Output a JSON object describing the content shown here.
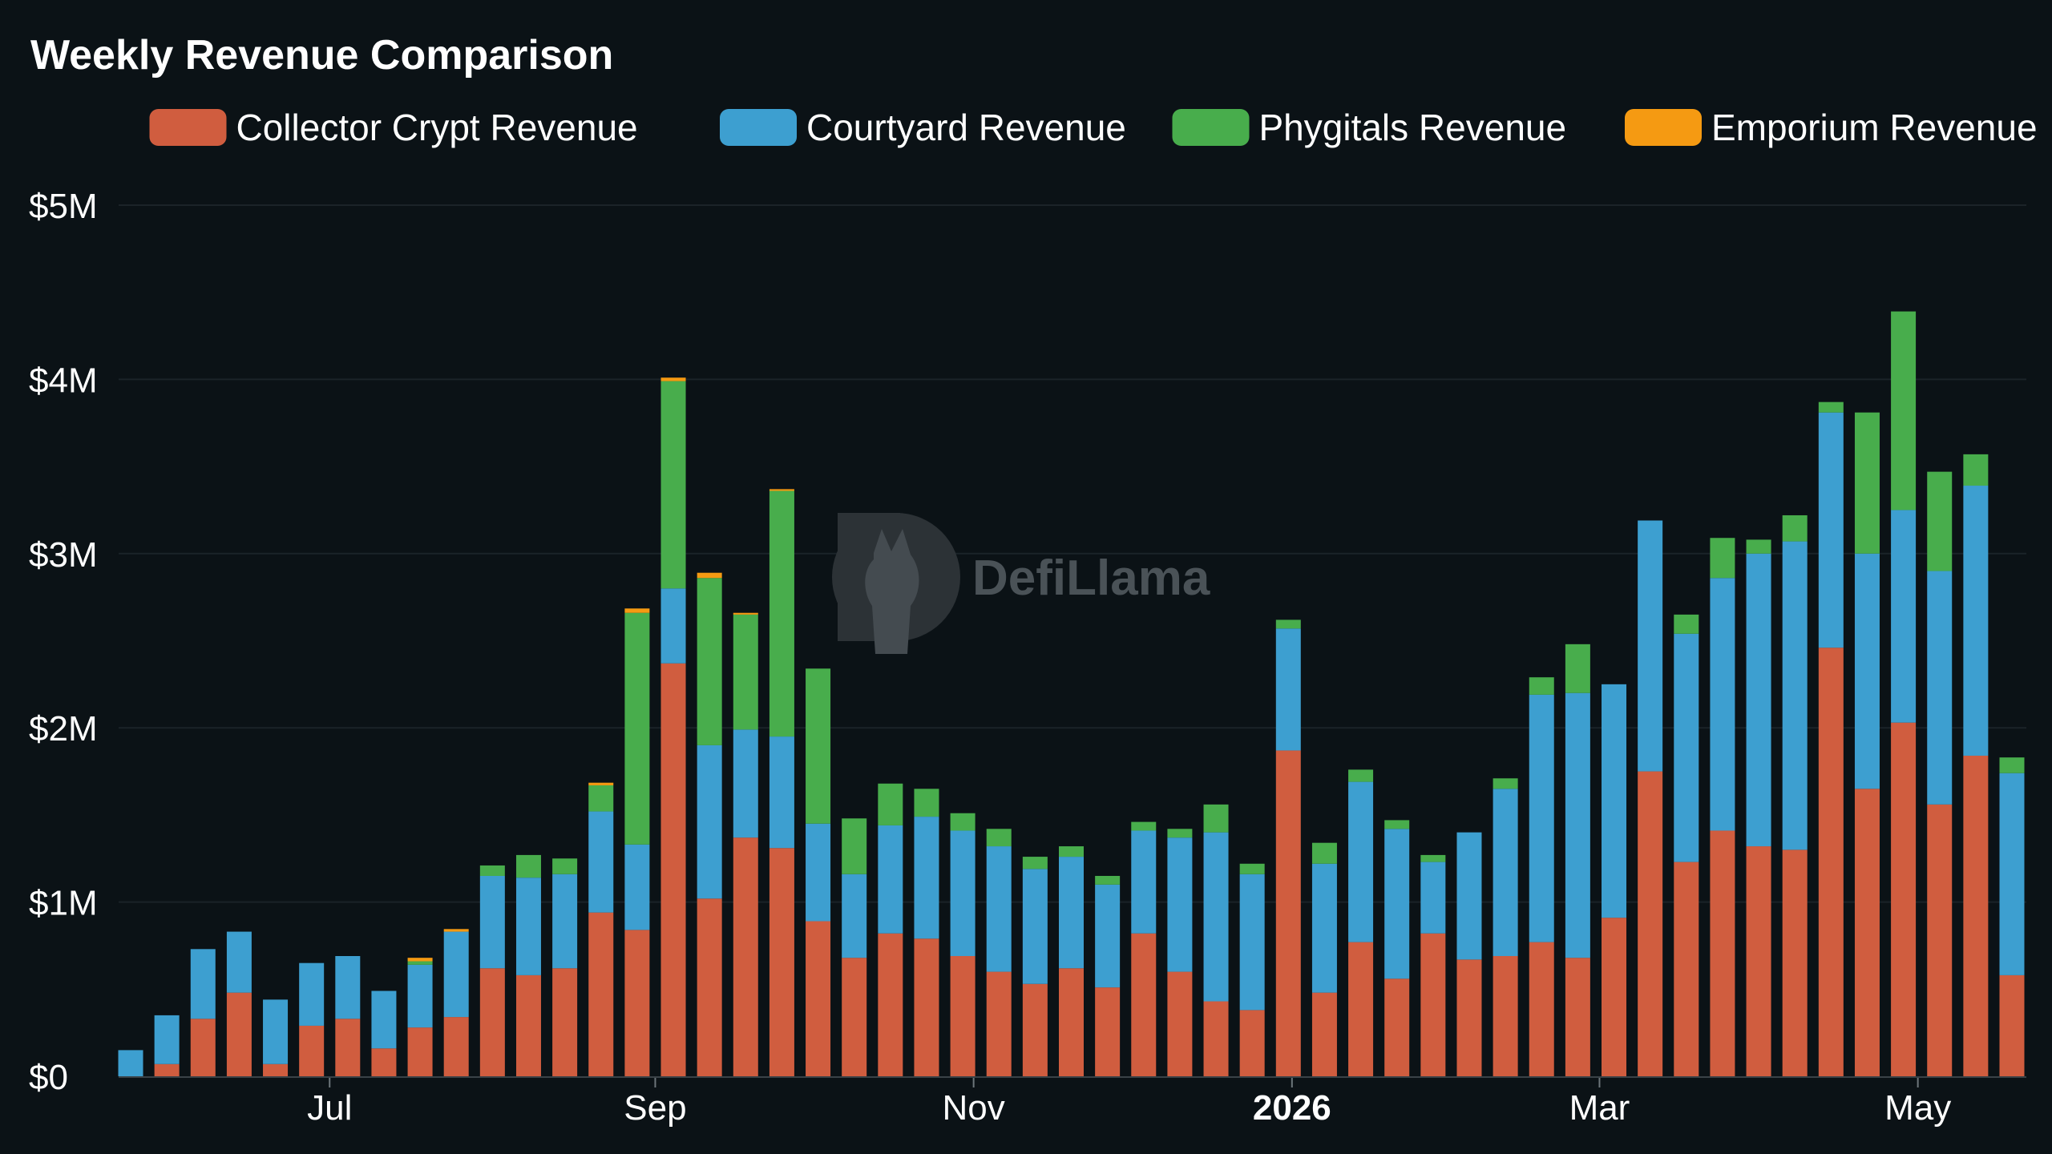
{
  "colors": {
    "background": "#0b1216",
    "collector": "#d05d3f",
    "courtyard": "#3d9fd0",
    "phygitals": "#48ad4c",
    "emporium": "#f59a12",
    "grid": "#1b2328"
  },
  "chart_data": {
    "type": "bar",
    "stacked": true,
    "title": "Weekly Revenue Comparison",
    "watermark": "DefiLlama",
    "legend_position": "top-right",
    "grid": true,
    "ylim": [
      0,
      5000000
    ],
    "y_ticks": [
      {
        "value": 0,
        "label": "$0"
      },
      {
        "value": 1000000,
        "label": "$1M"
      },
      {
        "value": 2000000,
        "label": "$2M"
      },
      {
        "value": 3000000,
        "label": "$3M"
      },
      {
        "value": 4000000,
        "label": "$4M"
      },
      {
        "value": 5000000,
        "label": "$5M"
      }
    ],
    "x_ticks": [
      {
        "index": 5.5,
        "label": "Jul",
        "bold": false
      },
      {
        "index": 14.5,
        "label": "Sep",
        "bold": false
      },
      {
        "index": 23.3,
        "label": "Nov",
        "bold": false
      },
      {
        "index": 32.1,
        "label": "2026",
        "bold": true
      },
      {
        "index": 40.6,
        "label": "Mar",
        "bold": false
      },
      {
        "index": 49.4,
        "label": "May",
        "bold": false
      }
    ],
    "series": [
      {
        "name": "Collector Crypt Revenue",
        "color": "#d05d3f",
        "values": [
          0,
          70000,
          330000,
          480000,
          70000,
          290000,
          330000,
          160000,
          280000,
          340000,
          620000,
          580000,
          620000,
          940000,
          840000,
          2370000,
          1020000,
          1370000,
          1310000,
          890000,
          680000,
          820000,
          790000,
          690000,
          600000,
          530000,
          620000,
          510000,
          820000,
          600000,
          430000,
          380000,
          1870000,
          480000,
          770000,
          560000,
          820000,
          670000,
          690000,
          770000,
          680000,
          910000,
          1750000,
          1230000,
          1410000,
          1320000,
          1300000,
          2460000,
          1650000,
          2030000,
          1560000,
          1840000,
          580000
        ]
      },
      {
        "name": "Courtyard Revenue",
        "color": "#3d9fd0",
        "values": [
          150000,
          280000,
          400000,
          350000,
          370000,
          360000,
          360000,
          330000,
          360000,
          490000,
          530000,
          560000,
          540000,
          580000,
          490000,
          430000,
          880000,
          620000,
          640000,
          560000,
          480000,
          620000,
          700000,
          720000,
          720000,
          660000,
          640000,
          590000,
          590000,
          770000,
          970000,
          780000,
          700000,
          740000,
          920000,
          860000,
          410000,
          730000,
          960000,
          1420000,
          1520000,
          1340000,
          1440000,
          1310000,
          1450000,
          1680000,
          1770000,
          1350000,
          1350000,
          1220000,
          1340000,
          1550000,
          1160000
        ]
      },
      {
        "name": "Phygitals Revenue",
        "color": "#48ad4c",
        "values": [
          0,
          0,
          0,
          0,
          0,
          0,
          0,
          0,
          20000,
          0,
          60000,
          130000,
          90000,
          150000,
          1330000,
          1190000,
          960000,
          660000,
          1410000,
          890000,
          320000,
          240000,
          160000,
          100000,
          100000,
          70000,
          60000,
          50000,
          50000,
          50000,
          160000,
          60000,
          50000,
          120000,
          70000,
          50000,
          40000,
          0,
          60000,
          100000,
          280000,
          0,
          0,
          110000,
          230000,
          80000,
          150000,
          60000,
          810000,
          1140000,
          570000,
          180000,
          90000
        ]
      },
      {
        "name": "Emporium Revenue",
        "color": "#f59a12",
        "values": [
          0,
          0,
          0,
          0,
          0,
          0,
          0,
          0,
          20000,
          15000,
          0,
          0,
          0,
          15000,
          25000,
          20000,
          30000,
          10000,
          10000,
          0,
          0,
          0,
          0,
          0,
          0,
          0,
          0,
          0,
          0,
          0,
          0,
          0,
          0,
          0,
          0,
          0,
          0,
          0,
          0,
          0,
          0,
          0,
          0,
          0,
          0,
          0,
          0,
          0,
          0,
          0,
          0,
          0,
          0
        ]
      }
    ]
  }
}
